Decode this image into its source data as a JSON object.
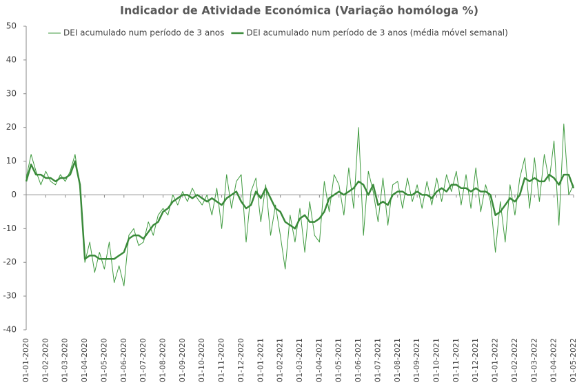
{
  "chart_data": {
    "type": "line",
    "title": "Indicador de Atividade Económica (Variação homóloga %)",
    "categories": [
      "01-01-2020",
      null,
      null,
      null,
      "01-02-2020",
      null,
      null,
      null,
      "01-03-2020",
      null,
      null,
      null,
      "01-04-2020",
      null,
      null,
      null,
      "01-05-2020",
      null,
      null,
      null,
      "01-06-2020",
      null,
      null,
      null,
      "01-07-2020",
      null,
      null,
      null,
      "01-08-2020",
      null,
      null,
      null,
      "01-09-2020",
      null,
      null,
      null,
      "01-10-2020",
      null,
      null,
      null,
      "01-11-2020",
      null,
      null,
      null,
      "01-12-2020",
      null,
      null,
      null,
      "01-01-2021",
      null,
      null,
      null,
      "01-02-2021",
      null,
      null,
      null,
      "01-03-2021",
      null,
      null,
      null,
      "01-04-2021",
      null,
      null,
      null,
      "01-05-2021",
      null,
      null,
      null,
      "01-06-2021",
      null,
      null,
      null,
      "01-07-2021",
      null,
      null,
      null,
      "01-08-2021",
      null,
      null,
      null,
      "01-09-2021",
      null,
      null,
      null,
      "01-10-2021",
      null,
      null,
      null,
      "01-11-2021",
      null,
      null,
      null,
      "01-12-2021",
      null,
      null,
      null,
      "01-01-2022",
      null,
      null,
      null,
      "01-02-2022",
      null,
      null,
      null,
      "01-03-2022",
      null,
      null,
      null,
      "01-04-2022",
      null,
      null,
      null,
      "01-05-2022"
    ],
    "series": [
      {
        "name": "DEI acumulado num período de 3 anos",
        "color": "#3f9a3f",
        "width": 1,
        "values": [
          5,
          12,
          7,
          3,
          7,
          4,
          3,
          6,
          4,
          7,
          12,
          2,
          -20,
          -14,
          -23,
          -17,
          -22,
          -14,
          -26,
          -21,
          -27,
          -12,
          -10,
          -15,
          -14,
          -8,
          -12,
          -6,
          -4,
          -6,
          0,
          -3,
          1,
          -2,
          2,
          -1,
          -3,
          0,
          -6,
          2,
          -10,
          6,
          -4,
          4,
          6,
          -14,
          1,
          5,
          -8,
          3,
          -12,
          -3,
          -12,
          -22,
          -6,
          -14,
          -4,
          -17,
          -2,
          -12,
          -14,
          4,
          -5,
          6,
          3,
          -6,
          8,
          -4,
          20,
          -12,
          7,
          1,
          -8,
          5,
          -9,
          3,
          4,
          -4,
          5,
          -2,
          3,
          -4,
          4,
          -3,
          5,
          -2,
          6,
          1,
          7,
          -3,
          6,
          -4,
          8,
          -5,
          3,
          -2,
          -17,
          -2,
          -14,
          3,
          -6,
          5,
          11,
          -4,
          11,
          -2,
          12,
          4,
          16,
          -9,
          21,
          0,
          3
        ]
      },
      {
        "name": "DEI acumulado num período de 3 anos (média móvel semanal)",
        "color": "#3a8a3a",
        "width": 2.5,
        "values": [
          4,
          9,
          6,
          6,
          5,
          5,
          4,
          5,
          5,
          6,
          10,
          3,
          -19,
          -18,
          -18,
          -19,
          -19,
          -19,
          -19,
          -18,
          -17,
          -13,
          -12,
          -12,
          -13,
          -11,
          -9,
          -8,
          -5,
          -4,
          -2,
          -1,
          0,
          0,
          -1,
          0,
          -1,
          -2,
          -1,
          -2,
          -3,
          -1,
          0,
          1,
          -2,
          -4,
          -3,
          1,
          -1,
          2,
          -1,
          -4,
          -5,
          -8,
          -9,
          -10,
          -7,
          -6,
          -8,
          -8,
          -7,
          -5,
          -1,
          0,
          1,
          0,
          1,
          2,
          4,
          3,
          0,
          3,
          -3,
          -2,
          -3,
          0,
          1,
          1,
          0,
          0,
          1,
          0,
          0,
          -1,
          1,
          2,
          1,
          3,
          3,
          2,
          2,
          1,
          2,
          1,
          1,
          0,
          -6,
          -5,
          -3,
          -1,
          -2,
          0,
          5,
          4,
          5,
          4,
          4,
          6,
          5,
          3,
          6,
          6,
          2
        ]
      }
    ],
    "ylim": [
      -40,
      50
    ],
    "yticks": [
      -40,
      -30,
      -20,
      -10,
      0,
      10,
      20,
      30,
      40,
      50
    ],
    "grid": false,
    "legend": "top"
  }
}
